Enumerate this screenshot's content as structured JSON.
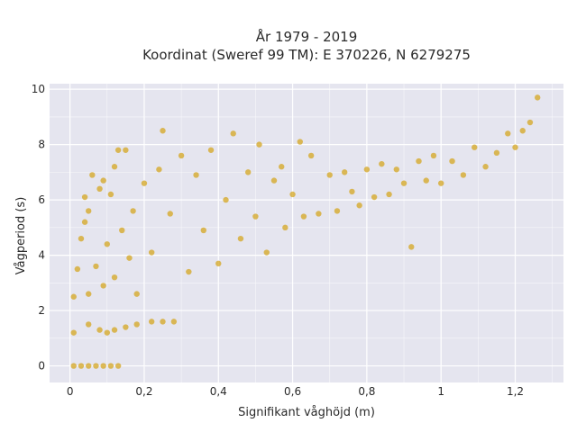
{
  "chart_data": {
    "type": "scatter",
    "title_lines": [
      "År 1979 - 2019",
      "Koordinat (Sweref 99 TM): E 370226, N 6279275"
    ],
    "xlabel": "Signifikant våghöjd (m)",
    "ylabel": "Vågperiod (s)",
    "xlim": [
      -0.055,
      1.33
    ],
    "ylim": [
      -0.6,
      10.2
    ],
    "x_ticks": [
      0,
      0.2,
      0.4,
      0.6,
      0.8,
      1.0,
      1.2
    ],
    "x_tick_labels": [
      "0",
      "0,2",
      "0,4",
      "0,6",
      "0,8",
      "1",
      "1,2"
    ],
    "y_ticks": [
      0,
      2,
      4,
      6,
      8,
      10
    ],
    "y_tick_labels": [
      "0",
      "2",
      "4",
      "6",
      "8",
      "10"
    ],
    "grid": true,
    "colors": {
      "marker": "#d4a520",
      "plot_background": "#e5e5ef",
      "grid": "#ffffff"
    },
    "series": [
      {
        "points": [
          [
            0.01,
            0.0
          ],
          [
            0.03,
            0.0
          ],
          [
            0.05,
            0.0
          ],
          [
            0.07,
            0.0
          ],
          [
            0.09,
            0.0
          ],
          [
            0.11,
            0.0
          ],
          [
            0.13,
            0.0
          ],
          [
            0.01,
            1.2
          ],
          [
            0.01,
            2.5
          ],
          [
            0.02,
            3.5
          ],
          [
            0.03,
            4.6
          ],
          [
            0.04,
            5.2
          ],
          [
            0.04,
            6.1
          ],
          [
            0.05,
            5.6
          ],
          [
            0.06,
            6.9
          ],
          [
            0.08,
            6.4
          ],
          [
            0.09,
            6.7
          ],
          [
            0.11,
            6.2
          ],
          [
            0.12,
            7.2
          ],
          [
            0.13,
            7.8
          ],
          [
            0.15,
            7.8
          ],
          [
            0.05,
            1.5
          ],
          [
            0.08,
            1.3
          ],
          [
            0.1,
            1.2
          ],
          [
            0.12,
            1.3
          ],
          [
            0.15,
            1.4
          ],
          [
            0.18,
            1.5
          ],
          [
            0.22,
            1.6
          ],
          [
            0.25,
            1.6
          ],
          [
            0.28,
            1.6
          ],
          [
            0.05,
            2.6
          ],
          [
            0.07,
            3.6
          ],
          [
            0.09,
            2.9
          ],
          [
            0.1,
            4.4
          ],
          [
            0.12,
            3.2
          ],
          [
            0.14,
            4.9
          ],
          [
            0.16,
            3.9
          ],
          [
            0.17,
            5.6
          ],
          [
            0.18,
            2.6
          ],
          [
            0.2,
            6.6
          ],
          [
            0.22,
            4.1
          ],
          [
            0.24,
            7.1
          ],
          [
            0.25,
            8.5
          ],
          [
            0.27,
            5.5
          ],
          [
            0.3,
            7.6
          ],
          [
            0.32,
            3.4
          ],
          [
            0.34,
            6.9
          ],
          [
            0.36,
            4.9
          ],
          [
            0.38,
            7.8
          ],
          [
            0.4,
            3.7
          ],
          [
            0.42,
            6.0
          ],
          [
            0.44,
            8.4
          ],
          [
            0.46,
            4.6
          ],
          [
            0.48,
            7.0
          ],
          [
            0.5,
            5.4
          ],
          [
            0.51,
            8.0
          ],
          [
            0.53,
            4.1
          ],
          [
            0.55,
            6.7
          ],
          [
            0.57,
            7.2
          ],
          [
            0.58,
            5.0
          ],
          [
            0.6,
            6.2
          ],
          [
            0.62,
            8.1
          ],
          [
            0.63,
            5.4
          ],
          [
            0.65,
            7.6
          ],
          [
            0.67,
            5.5
          ],
          [
            0.7,
            6.9
          ],
          [
            0.72,
            5.6
          ],
          [
            0.74,
            7.0
          ],
          [
            0.76,
            6.3
          ],
          [
            0.78,
            5.8
          ],
          [
            0.8,
            7.1
          ],
          [
            0.82,
            6.1
          ],
          [
            0.84,
            7.3
          ],
          [
            0.86,
            6.2
          ],
          [
            0.88,
            7.1
          ],
          [
            0.9,
            6.6
          ],
          [
            0.92,
            4.3
          ],
          [
            0.94,
            7.4
          ],
          [
            0.96,
            6.7
          ],
          [
            0.98,
            7.6
          ],
          [
            1.0,
            6.6
          ],
          [
            1.03,
            7.4
          ],
          [
            1.06,
            6.9
          ],
          [
            1.09,
            7.9
          ],
          [
            1.12,
            7.2
          ],
          [
            1.15,
            7.7
          ],
          [
            1.18,
            8.4
          ],
          [
            1.2,
            7.9
          ],
          [
            1.22,
            8.5
          ],
          [
            1.24,
            8.8
          ],
          [
            1.26,
            9.7
          ]
        ]
      }
    ]
  }
}
